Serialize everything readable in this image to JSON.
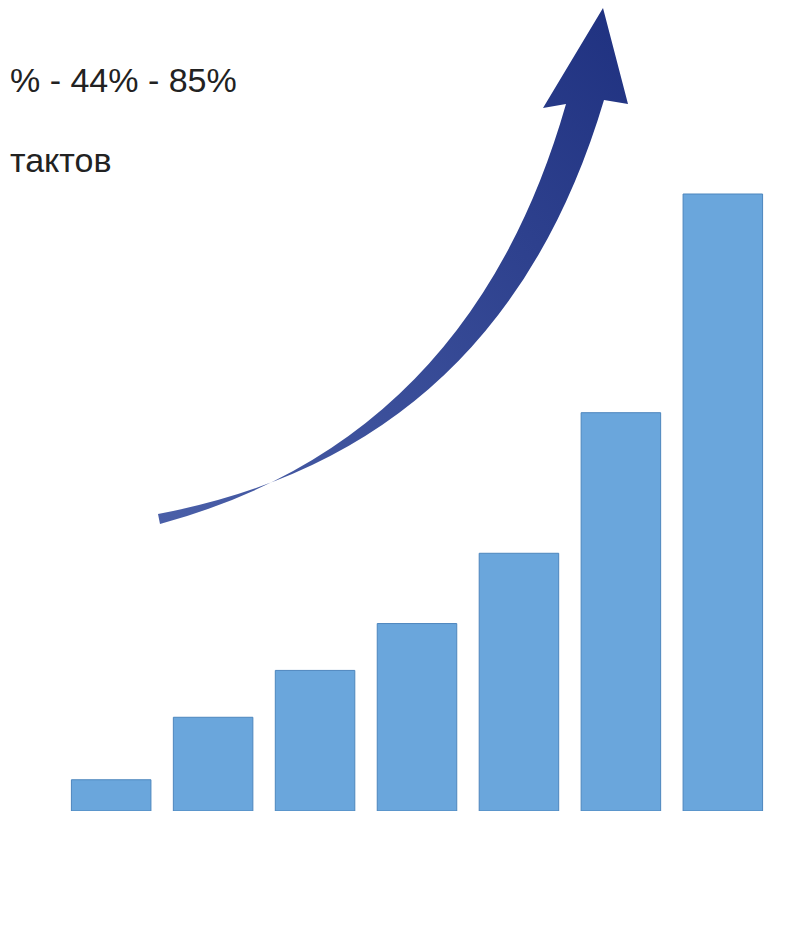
{
  "chart_data": {
    "type": "bar",
    "categories": [
      null,
      null,
      null,
      null,
      null,
      null,
      null
    ],
    "values": [
      4,
      12,
      18,
      24,
      33,
      51,
      79
    ],
    "color": "#6aa6dc",
    "ylim": [
      0,
      100
    ],
    "tick_labels": false,
    "annotations": [
      "% - 44% - 85%",
      "тактов"
    ]
  }
}
